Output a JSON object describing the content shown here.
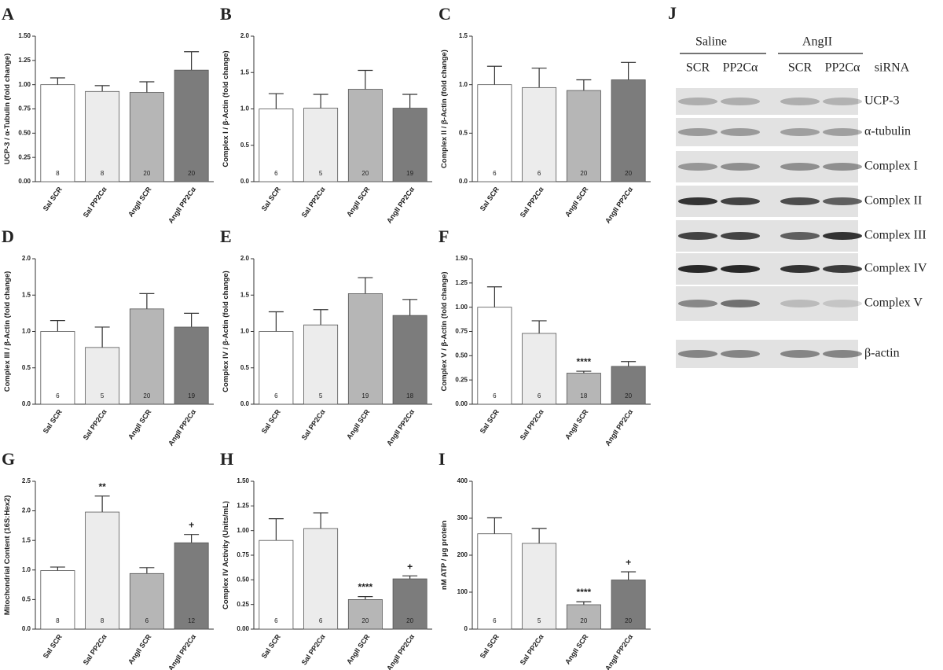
{
  "chart_data": [
    {
      "type": "bar",
      "label": "A",
      "ylabel": "UCP-3 / α-Tubulin (fold change)",
      "categories": [
        "Sal SCR",
        "Sal PP2Cα",
        "AngII SCR",
        "AngII PP2Cα"
      ],
      "values": [
        1.0,
        0.93,
        0.92,
        1.15
      ],
      "errors": [
        0.07,
        0.06,
        0.11,
        0.19
      ],
      "n": [
        8,
        8,
        20,
        20
      ],
      "significance": [
        null,
        null,
        null,
        null
      ],
      "colors": [
        "#ffffff",
        "#ececec",
        "#b6b6b6",
        "#7c7c7c"
      ],
      "ylim": [
        0,
        1.5
      ],
      "yticks": [
        {
          "value": 0,
          "label": "0.00"
        },
        {
          "value": 0.25,
          "label": "0.25"
        },
        {
          "value": 0.5,
          "label": "0.50"
        },
        {
          "value": 0.75,
          "label": "0.75"
        },
        {
          "value": 1,
          "label": "1.00"
        },
        {
          "value": 1.25,
          "label": "1.25"
        },
        {
          "value": 1.5,
          "label": "1.50"
        }
      ]
    },
    {
      "type": "bar",
      "label": "B",
      "ylabel": "Complex I / β-Actin (fold change)",
      "categories": [
        "Sal SCR",
        "Sal PP2Cα",
        "AngII SCR",
        "AngII PP2Cα"
      ],
      "values": [
        1.0,
        1.01,
        1.27,
        1.01
      ],
      "errors": [
        0.21,
        0.19,
        0.26,
        0.19
      ],
      "n": [
        6,
        5,
        20,
        19
      ],
      "significance": [
        null,
        null,
        null,
        null
      ],
      "colors": [
        "#ffffff",
        "#ececec",
        "#b6b6b6",
        "#7c7c7c"
      ],
      "ylim": [
        0,
        2
      ],
      "yticks": [
        {
          "value": 0,
          "label": "0.0"
        },
        0.5,
        {
          "value": 1,
          "label": "1.0"
        },
        1.5,
        {
          "value": 2,
          "label": "2.0"
        }
      ]
    },
    {
      "type": "bar",
      "label": "C",
      "ylabel": "Complex II / β-Actin (fold change)",
      "categories": [
        "Sal SCR",
        "Sal PP2Cα",
        "AngII SCR",
        "AngII PP2Cα"
      ],
      "values": [
        1.0,
        0.97,
        0.94,
        1.05
      ],
      "errors": [
        0.19,
        0.2,
        0.11,
        0.18
      ],
      "n": [
        6,
        6,
        20,
        20
      ],
      "significance": [
        null,
        null,
        null,
        null
      ],
      "colors": [
        "#ffffff",
        "#ececec",
        "#b6b6b6",
        "#7c7c7c"
      ],
      "ylim": [
        0,
        1.5
      ],
      "yticks": [
        {
          "value": 0,
          "label": "0.0"
        },
        0.5,
        {
          "value": 1,
          "label": "1.0"
        },
        1.5
      ]
    },
    {
      "type": "bar",
      "label": "D",
      "ylabel": "Complex III / β-Actin (fold change)",
      "categories": [
        "Sal SCR",
        "Sal PP2Cα",
        "AngII SCR",
        "AngII PP2Cα"
      ],
      "values": [
        1.0,
        0.78,
        1.31,
        1.06
      ],
      "errors": [
        0.15,
        0.28,
        0.21,
        0.19
      ],
      "n": [
        6,
        5,
        20,
        19
      ],
      "significance": [
        null,
        null,
        null,
        null
      ],
      "colors": [
        "#ffffff",
        "#ececec",
        "#b6b6b6",
        "#7c7c7c"
      ],
      "ylim": [
        0,
        2
      ],
      "yticks": [
        {
          "value": 0,
          "label": "0.0"
        },
        0.5,
        {
          "value": 1,
          "label": "1.0"
        },
        1.5,
        {
          "value": 2,
          "label": "2.0"
        }
      ]
    },
    {
      "type": "bar",
      "label": "E",
      "ylabel": "Complex IV / β-Actin (fold change)",
      "categories": [
        "Sal SCR",
        "Sal PP2Cα",
        "AngII SCR",
        "AngII PP2Cα"
      ],
      "values": [
        1.0,
        1.09,
        1.52,
        1.22
      ],
      "errors": [
        0.27,
        0.21,
        0.22,
        0.22
      ],
      "n": [
        6,
        5,
        19,
        18
      ],
      "significance": [
        null,
        null,
        null,
        null
      ],
      "colors": [
        "#ffffff",
        "#ececec",
        "#b6b6b6",
        "#7c7c7c"
      ],
      "ylim": [
        0,
        2
      ],
      "yticks": [
        {
          "value": 0,
          "label": "0.0"
        },
        0.5,
        {
          "value": 1,
          "label": "1.0"
        },
        1.5,
        {
          "value": 2,
          "label": "2.0"
        }
      ]
    },
    {
      "type": "bar",
      "label": "F",
      "ylabel": "Complex V / β-Actin (fold change)",
      "categories": [
        "Sal SCR",
        "Sal PP2Cα",
        "AngII SCR",
        "AngII PP2Cα"
      ],
      "values": [
        1.0,
        0.73,
        0.32,
        0.39
      ],
      "errors": [
        0.21,
        0.13,
        0.02,
        0.05
      ],
      "n": [
        6,
        6,
        18,
        20
      ],
      "significance": [
        null,
        null,
        "****",
        null
      ],
      "colors": [
        "#ffffff",
        "#ececec",
        "#b6b6b6",
        "#7c7c7c"
      ],
      "ylim": [
        0,
        1.5
      ],
      "yticks": [
        {
          "value": 0,
          "label": "0.00"
        },
        {
          "value": 0.25,
          "label": "0.25"
        },
        {
          "value": 0.5,
          "label": "0.50"
        },
        {
          "value": 0.75,
          "label": "0.75"
        },
        {
          "value": 1,
          "label": "1.00"
        },
        {
          "value": 1.25,
          "label": "1.25"
        },
        {
          "value": 1.5,
          "label": "1.50"
        }
      ]
    },
    {
      "type": "bar",
      "label": "G",
      "ylabel": "Mitochondrial Content (16S:Hex2)",
      "categories": [
        "Sal SCR",
        "Sal PP2Cα",
        "AngII SCR",
        "AngII PP2Cα"
      ],
      "values": [
        0.99,
        1.98,
        0.94,
        1.46
      ],
      "errors": [
        0.06,
        0.27,
        0.1,
        0.14
      ],
      "n": [
        8,
        8,
        6,
        12
      ],
      "significance": [
        null,
        "**",
        null,
        "+"
      ],
      "colors": [
        "#ffffff",
        "#ececec",
        "#b6b6b6",
        "#7c7c7c"
      ],
      "ylim": [
        0,
        2.5
      ],
      "yticks": [
        {
          "value": 0,
          "label": "0.0"
        },
        0.5,
        {
          "value": 1,
          "label": "1.0"
        },
        1.5,
        {
          "value": 2,
          "label": "2.0"
        },
        2.5
      ]
    },
    {
      "type": "bar",
      "label": "H",
      "ylabel": "Complex IV Activity (Units/mL)",
      "categories": [
        "Sal SCR",
        "Sal PP2Cα",
        "AngII SCR",
        "AngII PP2Cα"
      ],
      "values": [
        0.9,
        1.02,
        0.3,
        0.51
      ],
      "errors": [
        0.22,
        0.16,
        0.03,
        0.03
      ],
      "n": [
        6,
        6,
        20,
        20
      ],
      "significance": [
        null,
        null,
        "****",
        "+"
      ],
      "colors": [
        "#ffffff",
        "#ececec",
        "#b6b6b6",
        "#7c7c7c"
      ],
      "ylim": [
        0,
        1.5
      ],
      "yticks": [
        {
          "value": 0,
          "label": "0.00"
        },
        {
          "value": 0.25,
          "label": "0.25"
        },
        {
          "value": 0.5,
          "label": "0.50"
        },
        {
          "value": 0.75,
          "label": "0.75"
        },
        {
          "value": 1,
          "label": "1.00"
        },
        {
          "value": 1.25,
          "label": "1.25"
        },
        {
          "value": 1.5,
          "label": "1.50"
        }
      ]
    },
    {
      "type": "bar",
      "label": "I",
      "ylabel": "nM ATP / µg protein",
      "categories": [
        "Sal SCR",
        "Sal PP2Cα",
        "AngII SCR",
        "AngII PP2Cα"
      ],
      "values": [
        258,
        232,
        66,
        133
      ],
      "errors": [
        43,
        40,
        8,
        22
      ],
      "n": [
        6,
        5,
        20,
        20
      ],
      "significance": [
        null,
        null,
        "****",
        "+"
      ],
      "colors": [
        "#ffffff",
        "#ececec",
        "#b6b6b6",
        "#7c7c7c"
      ],
      "ylim": [
        0,
        400
      ],
      "yticks": [
        0,
        100,
        200,
        300,
        400
      ]
    }
  ],
  "blot": {
    "label": "J",
    "groups": [
      "Saline",
      "AngII"
    ],
    "lanes": [
      "SCR",
      "PP2Cα",
      "SCR",
      "PP2Cα"
    ],
    "lane_title": "siRNA",
    "rows": [
      "UCP-3",
      "α-tubulin",
      "Complex I",
      "Complex II",
      "Complex III",
      "Complex IV",
      "Complex V",
      "β-actin"
    ]
  }
}
